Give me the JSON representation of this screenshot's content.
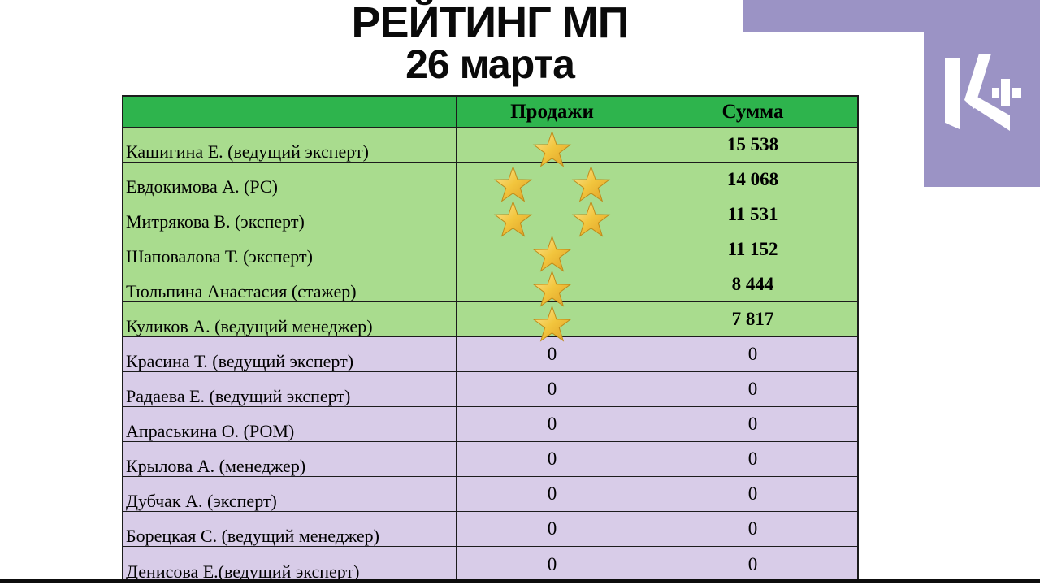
{
  "title": {
    "line1": "РЕЙТИНГ МП",
    "line2": "26 марта"
  },
  "logo": {
    "name": "K+"
  },
  "table": {
    "columns": [
      "",
      "Продажи",
      "Сумма"
    ],
    "rows": [
      {
        "name": "Кашигина Е. (ведущий эксперт)",
        "stars": 1,
        "sales": "",
        "sum": "15 538",
        "group": "green"
      },
      {
        "name": "Евдокимова А. (РС)",
        "stars": 2,
        "sales": "",
        "sum": "14 068",
        "group": "green"
      },
      {
        "name": "Митрякова В. (эксперт)",
        "stars": 2,
        "sales": "",
        "sum": "11 531",
        "group": "green"
      },
      {
        "name": "Шаповалова Т. (эксперт)",
        "stars": 1,
        "sales": "",
        "sum": "11 152",
        "group": "green"
      },
      {
        "name": "Тюльпина Анастасия (стажер)",
        "stars": 1,
        "sales": "",
        "sum": "8 444",
        "group": "green"
      },
      {
        "name": "Куликов А. (ведущий менеджер)",
        "stars": 1,
        "sales": "",
        "sum": "7 817",
        "group": "green"
      },
      {
        "name": "Красина Т. (ведущий эксперт)",
        "stars": 0,
        "sales": "0",
        "sum": "0",
        "group": "purple"
      },
      {
        "name": "Радаева Е. (ведущий эксперт)",
        "stars": 0,
        "sales": "0",
        "sum": "0",
        "group": "purple"
      },
      {
        "name": "Апраськина О. (РОМ)",
        "stars": 0,
        "sales": "0",
        "sum": "0",
        "group": "purple"
      },
      {
        "name": "Крылова А. (менеджер)",
        "stars": 0,
        "sales": "0",
        "sum": "0",
        "group": "purple"
      },
      {
        "name": "Дубчак А. (эксперт)",
        "stars": 0,
        "sales": "0",
        "sum": "0",
        "group": "purple"
      },
      {
        "name": "Борецкая С. (ведущий менеджер)",
        "stars": 0,
        "sales": "0",
        "sum": "0",
        "group": "purple"
      },
      {
        "name": "Денисова Е.(ведущий эксперт)",
        "stars": 0,
        "sales": "0",
        "sum": "0",
        "group": "purple"
      }
    ]
  },
  "colors": {
    "header_green": "#2EB44D",
    "row_green": "#A9DC8E",
    "row_purple": "#D8CCE8",
    "decor_purple": "#9B93C5",
    "star_gold": "#F2C53D"
  }
}
